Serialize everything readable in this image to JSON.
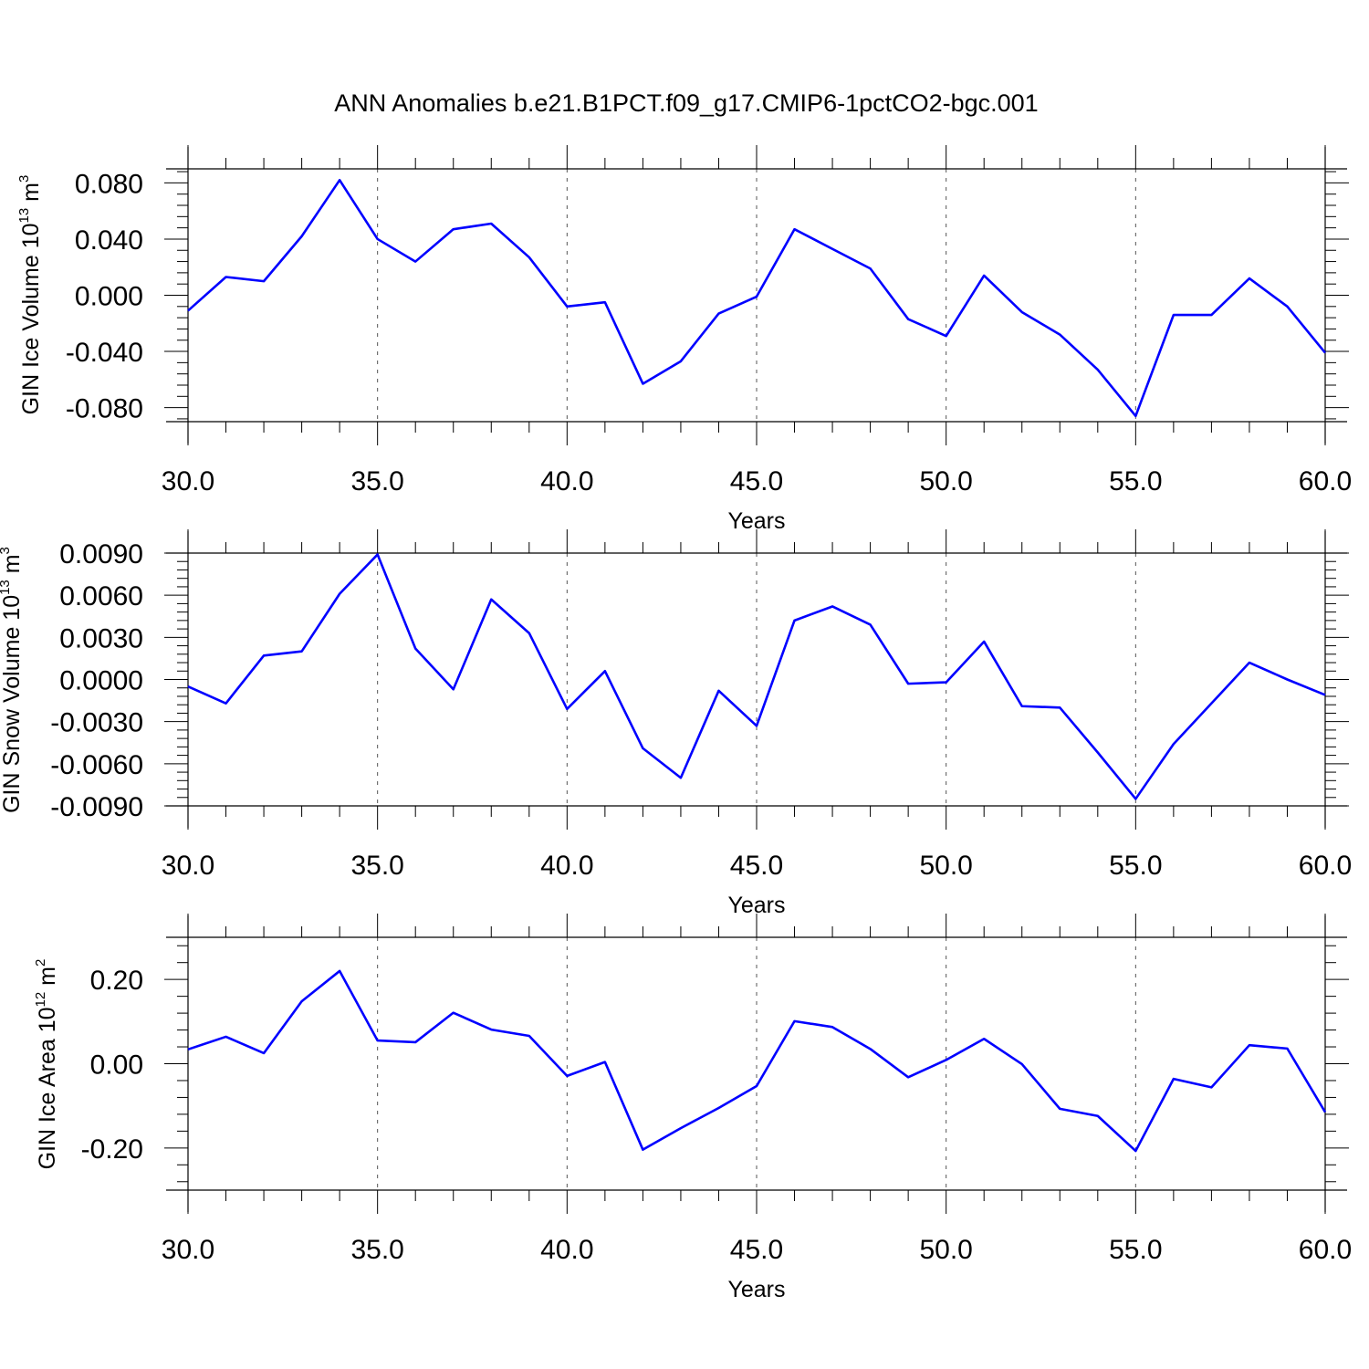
{
  "title": "ANN Anomalies b.e21.B1PCT.f09_g17.CMIP6-1pctCO2-bgc.001",
  "line_color": "#0000ff",
  "chart_data": [
    {
      "type": "line",
      "xlabel": "Years",
      "ylabel": {
        "text": "GIN Ice Volume 10",
        "exp": "13",
        "unit": " m",
        "unit_exp": "3"
      },
      "xlim": [
        30,
        60
      ],
      "ylim": [
        -0.09,
        0.09
      ],
      "xticks": [
        30,
        35,
        40,
        45,
        50,
        55,
        60
      ],
      "xtick_labels": [
        "30.0",
        "35.0",
        "40.0",
        "45.0",
        "50.0",
        "55.0",
        "60.0"
      ],
      "yticks": [
        0.08,
        0.04,
        0,
        -0.04,
        -0.08
      ],
      "ytick_labels": [
        "0.080",
        "0.040",
        "0.000",
        "-0.040",
        "-0.080"
      ],
      "ygrid": false,
      "xgrid": "dashed at major ticks",
      "x": [
        30,
        31,
        32,
        33,
        34,
        35,
        36,
        37,
        38,
        39,
        40,
        41,
        42,
        43,
        44,
        45,
        46,
        47,
        48,
        49,
        50,
        51,
        52,
        53,
        54,
        55,
        56,
        57,
        58,
        59,
        60
      ],
      "series": [
        {
          "values": [
            -0.011,
            0.013,
            0.01,
            0.042,
            0.082,
            0.04,
            0.024,
            0.047,
            0.051,
            0.027,
            -0.008,
            -0.005,
            -0.063,
            -0.047,
            -0.013,
            -0.001,
            0.047,
            0.033,
            0.019,
            -0.017,
            -0.029,
            0.014,
            -0.012,
            -0.028,
            -0.053,
            -0.086,
            -0.014,
            -0.014,
            0.012,
            -0.008,
            -0.041
          ]
        }
      ]
    },
    {
      "type": "line",
      "xlabel": "Years",
      "ylabel": {
        "text": "GIN Snow Volume 10",
        "exp": "13",
        "unit": " m",
        "unit_exp": "3"
      },
      "xlim": [
        30,
        60
      ],
      "ylim": [
        -0.009,
        0.009
      ],
      "xticks": [
        30,
        35,
        40,
        45,
        50,
        55,
        60
      ],
      "xtick_labels": [
        "30.0",
        "35.0",
        "40.0",
        "45.0",
        "50.0",
        "55.0",
        "60.0"
      ],
      "yticks": [
        0.009,
        0.006,
        0.003,
        0,
        -0.003,
        -0.006,
        -0.009
      ],
      "ytick_labels": [
        "0.0090",
        "0.0060",
        "0.0030",
        "0.0000",
        "-0.0030",
        "-0.0060",
        "-0.0090"
      ],
      "ygrid": false,
      "xgrid": "dashed at major ticks",
      "x": [
        30,
        31,
        32,
        33,
        34,
        35,
        36,
        37,
        38,
        39,
        40,
        41,
        42,
        43,
        44,
        45,
        46,
        47,
        48,
        49,
        50,
        51,
        52,
        53,
        54,
        55,
        56,
        57,
        58,
        59,
        60
      ],
      "series": [
        {
          "values": [
            -0.0005,
            -0.0017,
            0.0017,
            0.002,
            0.0061,
            0.0089,
            0.0022,
            -0.0007,
            0.0057,
            0.0033,
            -0.0021,
            0.0006,
            -0.0049,
            -0.007,
            -0.0008,
            -0.0033,
            0.0042,
            0.0052,
            0.0039,
            -0.0003,
            -0.0002,
            0.0027,
            -0.0019,
            -0.002,
            -0.0052,
            -0.0085,
            -0.0046,
            -0.0017,
            0.0012,
            0.0,
            -0.0011
          ]
        }
      ]
    },
    {
      "type": "line",
      "xlabel": "Years",
      "ylabel": {
        "text": "GIN Ice Area 10",
        "exp": "12",
        "unit": " m",
        "unit_exp": "2"
      },
      "xlim": [
        30,
        60
      ],
      "ylim": [
        -0.3,
        0.3
      ],
      "xticks": [
        30,
        35,
        40,
        45,
        50,
        55,
        60
      ],
      "xtick_labels": [
        "30.0",
        "35.0",
        "40.0",
        "45.0",
        "50.0",
        "55.0",
        "60.0"
      ],
      "yticks": [
        0.2,
        0,
        -0.2
      ],
      "ytick_labels": [
        "0.20",
        "0.00",
        "-0.20"
      ],
      "ygrid": false,
      "xgrid": "dashed at major ticks",
      "x": [
        30,
        31,
        32,
        33,
        34,
        35,
        36,
        37,
        38,
        39,
        40,
        41,
        42,
        43,
        44,
        45,
        46,
        47,
        48,
        49,
        50,
        51,
        52,
        53,
        54,
        55,
        56,
        57,
        58,
        59,
        60
      ],
      "series": [
        {
          "values": [
            0.034,
            0.064,
            0.025,
            0.148,
            0.22,
            0.055,
            0.051,
            0.121,
            0.081,
            0.066,
            -0.029,
            0.004,
            -0.204,
            -0.153,
            -0.105,
            -0.053,
            0.101,
            0.087,
            0.035,
            -0.032,
            0.009,
            0.059,
            -0.001,
            -0.107,
            -0.124,
            -0.207,
            -0.036,
            -0.056,
            0.044,
            0.036,
            -0.115
          ]
        }
      ]
    }
  ]
}
